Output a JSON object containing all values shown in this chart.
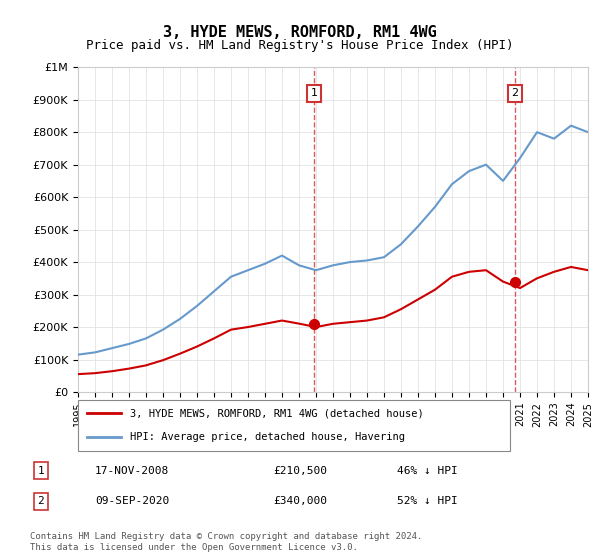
{
  "title": "3, HYDE MEWS, ROMFORD, RM1 4WG",
  "subtitle": "Price paid vs. HM Land Registry's House Price Index (HPI)",
  "legend_line1": "3, HYDE MEWS, ROMFORD, RM1 4WG (detached house)",
  "legend_line2": "HPI: Average price, detached house, Havering",
  "transaction1_date": "17-NOV-2008",
  "transaction1_price": "£210,500",
  "transaction1_pct": "46% ↓ HPI",
  "transaction2_date": "09-SEP-2020",
  "transaction2_price": "£340,000",
  "transaction2_pct": "52% ↓ HPI",
  "footnote": "Contains HM Land Registry data © Crown copyright and database right 2024.\nThis data is licensed under the Open Government Licence v3.0.",
  "red_line_color": "#cc0000",
  "blue_line_color": "#6699cc",
  "marker_color": "#cc0000",
  "annotation_box_color": "#cc3333",
  "ylim_min": 0,
  "ylim_max": 1000000,
  "yticks": [
    0,
    100000,
    200000,
    300000,
    400000,
    500000,
    600000,
    700000,
    800000,
    900000,
    1000000
  ],
  "ytick_labels": [
    "£0",
    "£100K",
    "£200K",
    "£300K",
    "£400K",
    "£500K",
    "£600K",
    "£700K",
    "£800K",
    "£900K",
    "£1M"
  ],
  "hpi_years": [
    1995,
    1996,
    1997,
    1998,
    1999,
    2000,
    2001,
    2002,
    2003,
    2004,
    2005,
    2006,
    2007,
    2008,
    2009,
    2010,
    2011,
    2012,
    2013,
    2014,
    2015,
    2016,
    2017,
    2018,
    2019,
    2020,
    2021,
    2022,
    2023,
    2024,
    2025
  ],
  "hpi_values": [
    115000,
    122000,
    135000,
    148000,
    165000,
    192000,
    225000,
    265000,
    310000,
    355000,
    375000,
    395000,
    420000,
    390000,
    375000,
    390000,
    400000,
    405000,
    415000,
    455000,
    510000,
    570000,
    640000,
    680000,
    700000,
    650000,
    720000,
    800000,
    780000,
    820000,
    800000
  ],
  "red_years": [
    1995,
    1996,
    1997,
    1998,
    1999,
    2000,
    2001,
    2002,
    2003,
    2004,
    2005,
    2006,
    2007,
    2008,
    2009,
    2010,
    2011,
    2012,
    2013,
    2014,
    2015,
    2016,
    2017,
    2018,
    2019,
    2020,
    2021,
    2022,
    2023,
    2024,
    2025
  ],
  "red_values": [
    55000,
    58000,
    64000,
    72000,
    82000,
    98000,
    118000,
    140000,
    165000,
    192000,
    200000,
    210000,
    220000,
    210500,
    200000,
    210000,
    215000,
    220000,
    230000,
    255000,
    285000,
    315000,
    355000,
    370000,
    375000,
    340000,
    320000,
    350000,
    370000,
    385000,
    375000
  ],
  "transaction1_x": 2008.9,
  "transaction1_y": 210500,
  "transaction2_x": 2020.7,
  "transaction2_y": 340000,
  "vline1_x": 2008.9,
  "vline2_x": 2020.7,
  "xmin": 1995,
  "xmax": 2025
}
